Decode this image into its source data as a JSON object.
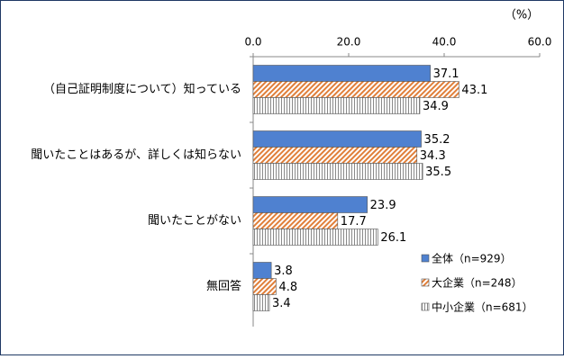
{
  "chart_data": {
    "type": "hbar",
    "unit_label": "（%）",
    "categories": [
      "（自己証明制度について）知っている",
      "聞いたことはあるが、詳しくは知らない",
      "聞いたことがない",
      "無回答"
    ],
    "series": [
      {
        "name": "全体（n=929）",
        "color": "#4f81d0",
        "fill_style": "solid",
        "values": [
          37.1,
          35.2,
          23.9,
          3.8
        ]
      },
      {
        "name": "大企業（n=248）",
        "color": "#e07f3a",
        "fill_style": "diagonal",
        "values": [
          43.1,
          34.3,
          17.7,
          4.8
        ]
      },
      {
        "name": "中小企業（n=681）",
        "color": "#8a8a8a",
        "fill_style": "vertical",
        "values": [
          34.9,
          35.5,
          26.1,
          3.4
        ]
      }
    ],
    "xlim": [
      0,
      60
    ],
    "xticks": [
      {
        "value": 0,
        "label": "0.0"
      },
      {
        "value": 20,
        "label": "20.0"
      },
      {
        "value": 40,
        "label": "40.0"
      },
      {
        "value": 60,
        "label": "60.0"
      }
    ],
    "legend": "bottom-right"
  }
}
